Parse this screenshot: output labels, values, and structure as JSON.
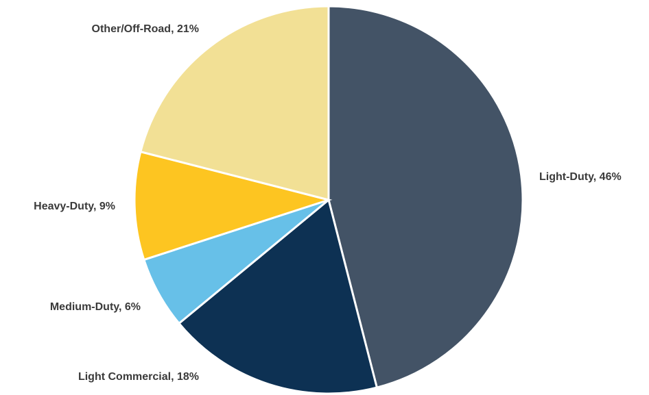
{
  "chart_data": {
    "type": "pie",
    "values": [
      46,
      18,
      6,
      9,
      21
    ],
    "value_labels": [
      "Light-Duty, 46%",
      "Light Commercial, 18%",
      "Medium-Duty, 6%",
      "Heavy-Duty, 9%",
      "Other/Off-Road, 21%"
    ],
    "colors": [
      "#435366",
      "#0d3153",
      "#67c0e8",
      "#fdc521",
      "#f2e095"
    ]
  }
}
